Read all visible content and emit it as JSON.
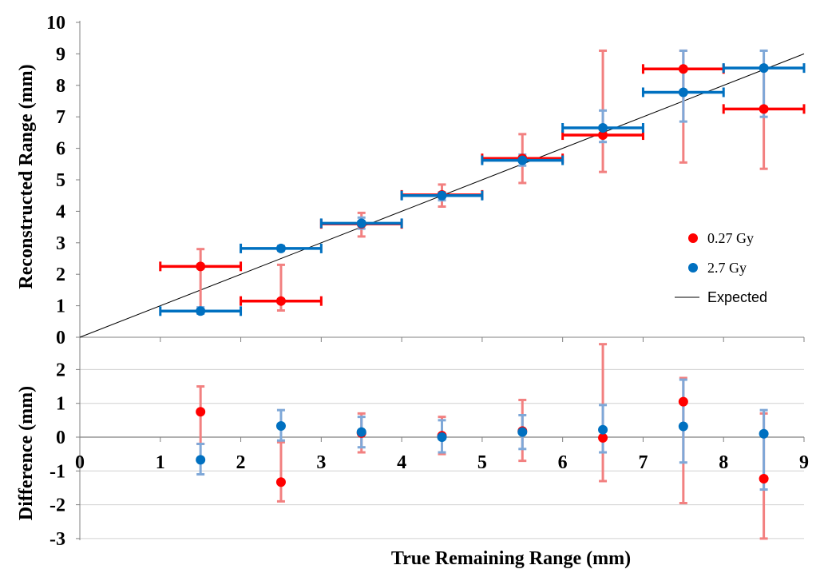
{
  "chart_data": [
    {
      "type": "scatter",
      "title": "",
      "xlabel": "",
      "ylabel": "Reconstructed Range (mm)",
      "xlim": [
        0,
        9
      ],
      "ylim": [
        0,
        10
      ],
      "xticks": [],
      "yticks": [
        "0",
        "1",
        "2",
        "3",
        "4",
        "5",
        "6",
        "7",
        "8",
        "9",
        "10"
      ],
      "grid": false,
      "legend_position": "right",
      "legend": [
        "0.27 Gy",
        "2.7 Gy",
        "Expected"
      ],
      "series": [
        {
          "name": "0.27 Gy",
          "color": "#ff0000",
          "errbar_color": "#f28080",
          "points": [
            {
              "x": 1.5,
              "y": 2.25,
              "xerr": 0.5,
              "ylo": 0.85,
              "yhi": 2.8
            },
            {
              "x": 2.5,
              "y": 1.15,
              "xerr": 0.5,
              "ylo": 0.85,
              "yhi": 2.3
            },
            {
              "x": 3.5,
              "y": 3.6,
              "xerr": 0.5,
              "ylo": 3.2,
              "yhi": 3.95
            },
            {
              "x": 4.5,
              "y": 4.52,
              "xerr": 0.5,
              "ylo": 4.15,
              "yhi": 4.85
            },
            {
              "x": 5.5,
              "y": 5.68,
              "xerr": 0.5,
              "ylo": 4.9,
              "yhi": 6.45
            },
            {
              "x": 6.5,
              "y": 6.42,
              "xerr": 0.5,
              "ylo": 5.25,
              "yhi": 9.1
            },
            {
              "x": 7.5,
              "y": 8.52,
              "xerr": 0.5,
              "ylo": 5.55,
              "yhi": 9.1
            },
            {
              "x": 8.5,
              "y": 7.25,
              "xerr": 0.5,
              "ylo": 5.35,
              "yhi": 8.55
            }
          ]
        },
        {
          "name": "2.7 Gy",
          "color": "#0070c0",
          "errbar_color": "#7fa8d8",
          "points": [
            {
              "x": 1.5,
              "y": 0.83,
              "xerr": 0.5,
              "ylo": 0.75,
              "yhi": 0.95
            },
            {
              "x": 2.5,
              "y": 2.82,
              "xerr": 0.5,
              "ylo": 2.75,
              "yhi": 2.9
            },
            {
              "x": 3.5,
              "y": 3.62,
              "xerr": 0.5,
              "ylo": 3.45,
              "yhi": 3.8
            },
            {
              "x": 4.5,
              "y": 4.5,
              "xerr": 0.5,
              "ylo": 4.35,
              "yhi": 4.6
            },
            {
              "x": 5.5,
              "y": 5.62,
              "xerr": 0.5,
              "ylo": 5.45,
              "yhi": 5.8
            },
            {
              "x": 6.5,
              "y": 6.65,
              "xerr": 0.5,
              "ylo": 6.2,
              "yhi": 7.2
            },
            {
              "x": 7.5,
              "y": 7.78,
              "xerr": 0.5,
              "ylo": 6.85,
              "yhi": 9.1
            },
            {
              "x": 8.5,
              "y": 8.55,
              "xerr": 0.5,
              "ylo": 7.0,
              "yhi": 9.1
            }
          ]
        },
        {
          "name": "Expected",
          "type": "line",
          "color": "#000000",
          "x": [
            0,
            9
          ],
          "y": [
            0,
            9
          ]
        }
      ]
    },
    {
      "type": "scatter",
      "title": "",
      "xlabel": "True Remaining Range (mm)",
      "ylabel": "Difference (mm)",
      "xlim": [
        0,
        9
      ],
      "ylim": [
        -3,
        3
      ],
      "xticks": [
        "0",
        "1",
        "2",
        "3",
        "4",
        "5",
        "6",
        "7",
        "8",
        "9"
      ],
      "yticks": [
        "-3",
        "-2",
        "-1",
        "0",
        "1",
        "2"
      ],
      "grid": true,
      "series": [
        {
          "name": "0.27 Gy",
          "color": "#ff0000",
          "errbar_color": "#f28080",
          "points": [
            {
              "x": 1.5,
              "y": 0.75,
              "ylo": -0.2,
              "yhi": 1.5
            },
            {
              "x": 2.5,
              "y": -1.33,
              "ylo": -1.9,
              "yhi": -0.15
            },
            {
              "x": 3.5,
              "y": 0.12,
              "ylo": -0.45,
              "yhi": 0.7
            },
            {
              "x": 4.5,
              "y": 0.04,
              "ylo": -0.5,
              "yhi": 0.6
            },
            {
              "x": 5.5,
              "y": 0.18,
              "ylo": -0.7,
              "yhi": 1.1
            },
            {
              "x": 6.5,
              "y": -0.02,
              "ylo": -1.3,
              "yhi": 2.75
            },
            {
              "x": 7.5,
              "y": 1.05,
              "ylo": -1.95,
              "yhi": 1.75
            },
            {
              "x": 8.5,
              "y": -1.23,
              "ylo": -3.0,
              "yhi": 0.7
            }
          ]
        },
        {
          "name": "2.7 Gy",
          "color": "#0070c0",
          "errbar_color": "#7fa8d8",
          "points": [
            {
              "x": 1.5,
              "y": -0.67,
              "ylo": -1.1,
              "yhi": -0.2
            },
            {
              "x": 2.5,
              "y": 0.33,
              "ylo": -0.1,
              "yhi": 0.8
            },
            {
              "x": 3.5,
              "y": 0.15,
              "ylo": -0.3,
              "yhi": 0.6
            },
            {
              "x": 4.5,
              "y": 0.0,
              "ylo": -0.45,
              "yhi": 0.5
            },
            {
              "x": 5.5,
              "y": 0.15,
              "ylo": -0.35,
              "yhi": 0.65
            },
            {
              "x": 6.5,
              "y": 0.22,
              "ylo": -0.45,
              "yhi": 0.95
            },
            {
              "x": 7.5,
              "y": 0.32,
              "ylo": -0.75,
              "yhi": 1.7
            },
            {
              "x": 8.5,
              "y": 0.1,
              "ylo": -1.55,
              "yhi": 0.8
            }
          ]
        }
      ]
    }
  ]
}
